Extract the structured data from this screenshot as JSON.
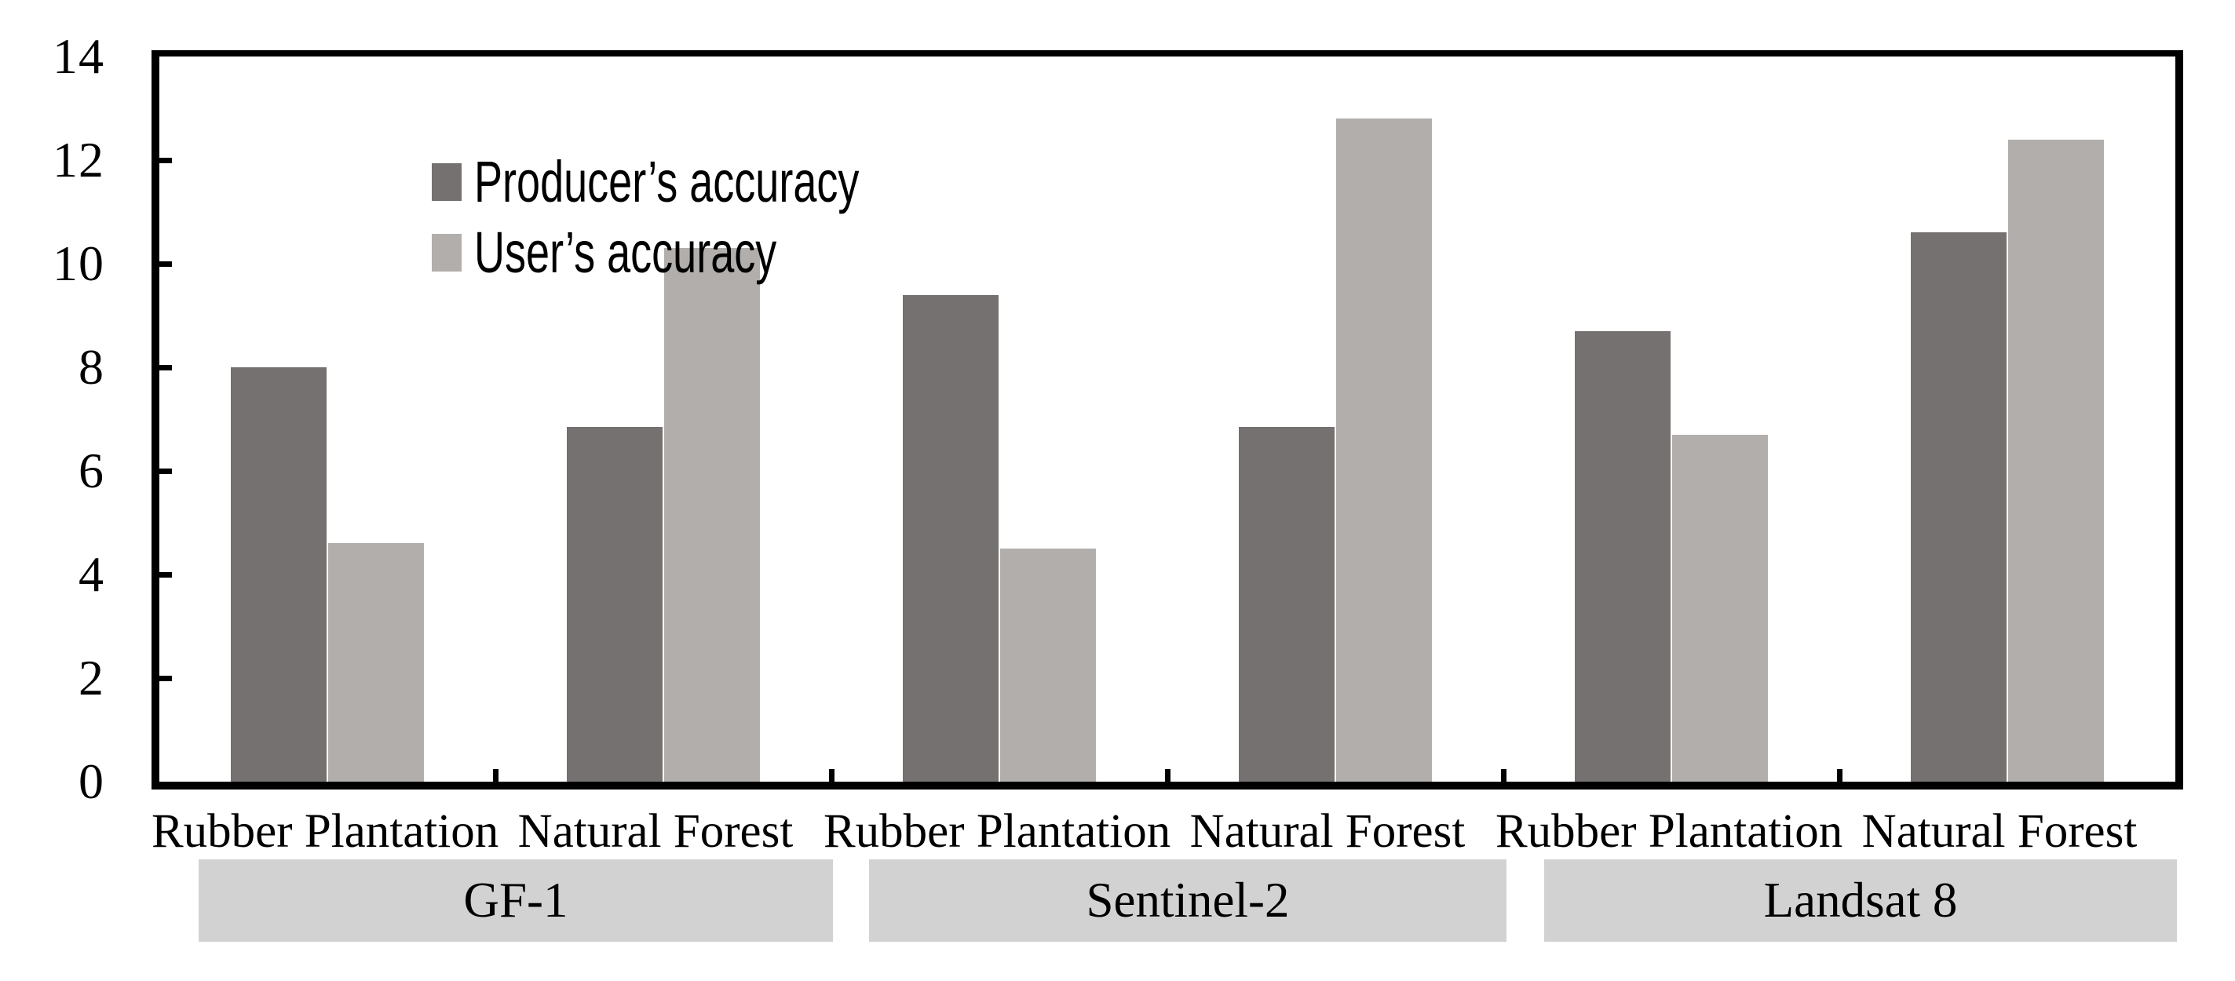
{
  "chart_data": {
    "type": "bar",
    "title": "",
    "xlabel": "",
    "ylabel": "",
    "ylim": [
      0,
      14
    ],
    "yticks": [
      0,
      2,
      4,
      6,
      8,
      10,
      12,
      14
    ],
    "grid": false,
    "legend_position": "top-left-inside",
    "categories": [
      "Rubber Plantation",
      "Natural Forest",
      "Rubber Plantation",
      "Natural Forest",
      "Rubber Plantation",
      "Natural Forest"
    ],
    "satellite_groups": [
      {
        "label": "GF-1",
        "categories": [
          "Rubber Plantation",
          "Natural Forest"
        ]
      },
      {
        "label": "Sentinel-2",
        "categories": [
          "Rubber Plantation",
          "Natural Forest"
        ]
      },
      {
        "label": "Landsat 8",
        "categories": [
          "Rubber Plantation",
          "Natural Forest"
        ]
      }
    ],
    "series": [
      {
        "name": "Producer’s accuracy",
        "color": "#747170",
        "values": [
          8.0,
          6.85,
          9.4,
          6.85,
          8.7,
          10.6
        ]
      },
      {
        "name": "User’s accuracy",
        "color": "#b1aeac",
        "values": [
          4.6,
          10.3,
          4.5,
          12.8,
          6.7,
          12.4
        ]
      }
    ]
  },
  "colors": {
    "background": "#ffffff",
    "axis": "#000000",
    "text": "#000000",
    "banner_fill": "#d2d2d2",
    "producer_series": "#747170",
    "user_series": "#b1aeac"
  }
}
